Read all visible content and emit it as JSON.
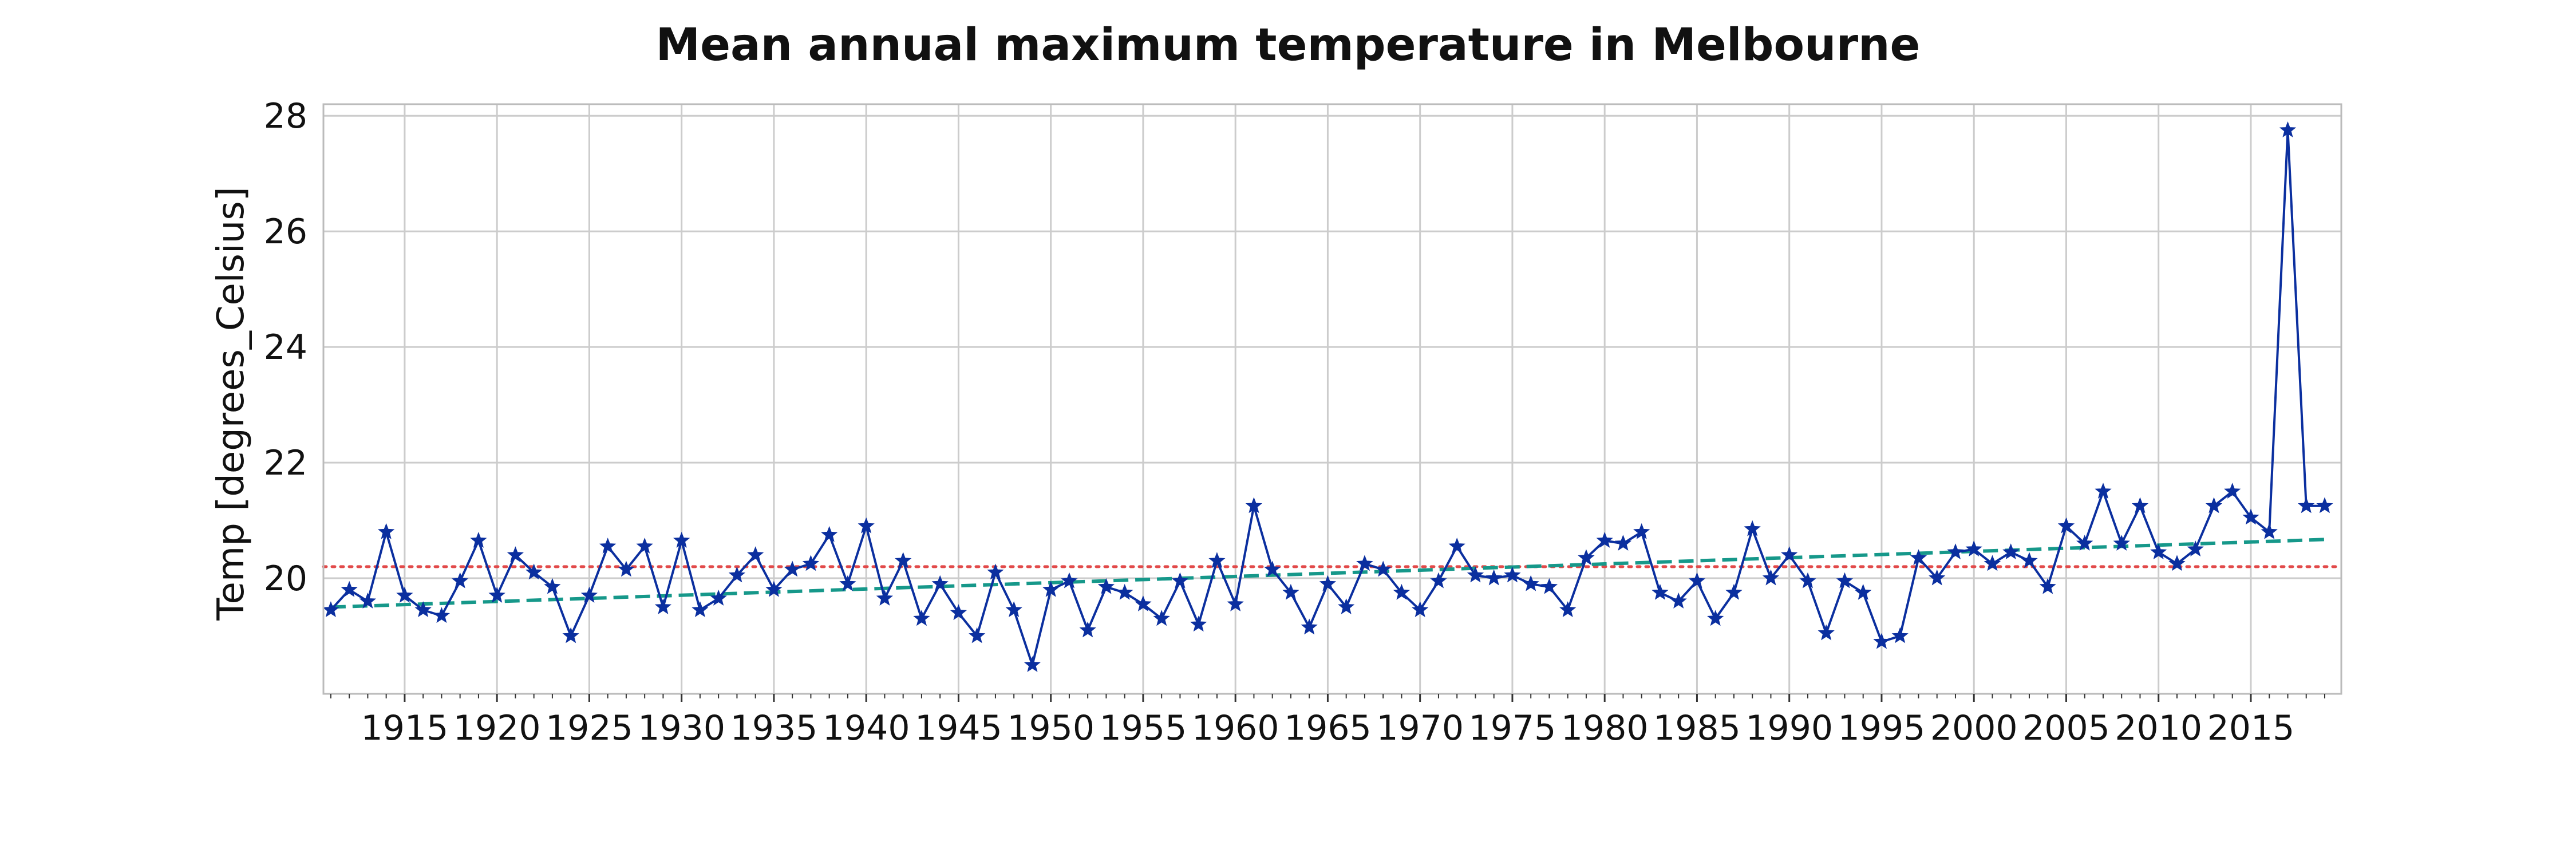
{
  "chart_data": {
    "type": "line",
    "title": "Mean annual maximum temperature in Melbourne",
    "xlabel": "",
    "ylabel": "Temp [degrees_Celsius]",
    "x_ticks": [
      "1915",
      "1920",
      "1925",
      "1930",
      "1935",
      "1940",
      "1945",
      "1950",
      "1955",
      "1960",
      "1965",
      "1970",
      "1975",
      "1980",
      "1985",
      "1990",
      "1995",
      "2000",
      "2005",
      "2010",
      "2015"
    ],
    "y_ticks": [
      "20",
      "22",
      "24",
      "26",
      "28"
    ],
    "xlim": [
      1910.6,
      2019.9
    ],
    "ylim": [
      18.0,
      28.2
    ],
    "grid": true,
    "legend": "none",
    "colors": {
      "series": "#0b2f9f",
      "trend": "#16988a",
      "mean": "#e24a4a",
      "grid": "#cccccc",
      "frame": "#bbbbbb"
    },
    "series": [
      {
        "x": [
          1911,
          1912,
          1913,
          1914,
          1915,
          1916,
          1917,
          1918,
          1919,
          1920,
          1921,
          1922,
          1923,
          1924,
          1925,
          1926,
          1927,
          1928,
          1929,
          1930,
          1931,
          1932,
          1933,
          1934,
          1935,
          1936,
          1937,
          1938,
          1939,
          1940,
          1941,
          1942,
          1943,
          1944,
          1945,
          1946,
          1947,
          1948,
          1949,
          1950,
          1951,
          1952,
          1953,
          1954,
          1955,
          1956,
          1957,
          1958,
          1959,
          1960,
          1961,
          1962,
          1963,
          1964,
          1965,
          1966,
          1967,
          1968,
          1969,
          1970,
          1971,
          1972,
          1973,
          1974,
          1975,
          1976,
          1977,
          1978,
          1979,
          1980,
          1981,
          1982,
          1983,
          1984,
          1985,
          1986,
          1987,
          1988,
          1989,
          1990,
          1991,
          1992,
          1993,
          1994,
          1995,
          1996,
          1997,
          1998,
          1999,
          2000,
          2001,
          2002,
          2003,
          2004,
          2005,
          2006,
          2007,
          2008,
          2009,
          2010,
          2011,
          2012,
          2013,
          2014,
          2015,
          2016,
          2017,
          2018,
          2019
        ],
        "values": [
          19.45,
          19.8,
          19.6,
          20.8,
          19.7,
          19.45,
          19.35,
          19.95,
          20.65,
          19.7,
          20.4,
          20.1,
          19.85,
          19.0,
          19.7,
          20.55,
          20.15,
          20.55,
          19.5,
          20.65,
          19.45,
          19.65,
          20.05,
          20.4,
          19.8,
          20.15,
          20.25,
          20.75,
          19.9,
          20.9,
          19.65,
          20.3,
          19.3,
          19.9,
          19.4,
          19.0,
          20.1,
          19.45,
          18.5,
          19.8,
          19.95,
          19.1,
          19.85,
          19.75,
          19.55,
          19.3,
          19.95,
          19.2,
          20.3,
          19.55,
          21.25,
          20.15,
          19.75,
          19.15,
          19.9,
          19.5,
          20.25,
          20.15,
          19.75,
          19.45,
          19.95,
          20.55,
          20.05,
          20.0,
          20.05,
          19.9,
          19.85,
          19.45,
          20.35,
          20.65,
          20.6,
          20.8,
          19.75,
          19.6,
          19.95,
          19.3,
          19.75,
          20.85,
          20.0,
          20.4,
          19.95,
          19.05,
          19.95,
          19.75,
          18.9,
          19.0,
          20.35,
          20.0,
          20.45,
          20.5,
          20.25,
          20.45,
          20.3,
          19.85,
          20.9,
          20.6,
          21.5,
          20.6,
          21.25,
          20.45,
          20.25,
          20.5,
          21.25,
          21.5,
          21.05,
          20.8,
          27.75,
          21.25,
          21.25
        ]
      }
    ],
    "trend_line": {
      "x": [
        1911,
        2019
      ],
      "values": [
        19.5,
        20.67
      ]
    },
    "mean_line": {
      "value": 20.2
    }
  }
}
